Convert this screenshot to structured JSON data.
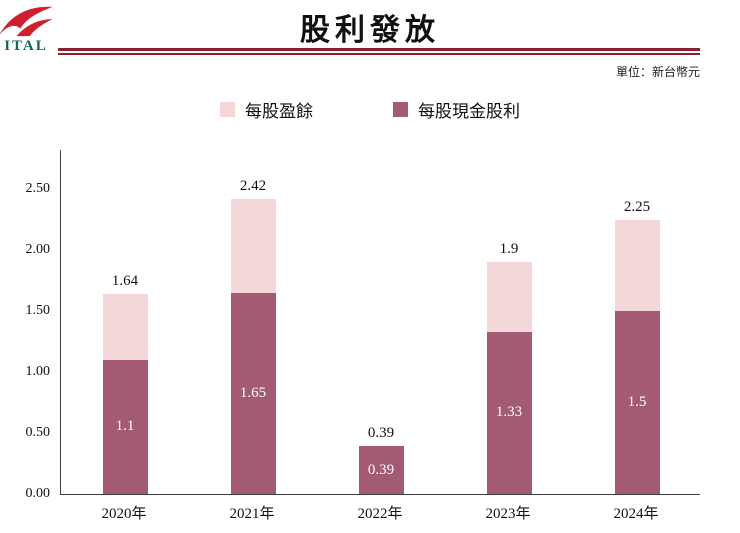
{
  "header": {
    "logo_text": "ITAL",
    "title": "股利發放",
    "unit_label": "單位：新台幣元"
  },
  "legend": [
    {
      "label": "每股盈餘",
      "color": "#f3d7d9"
    },
    {
      "label": "每股現金股利",
      "color": "#a25b72"
    }
  ],
  "colors": {
    "title_rule": "#8a2031",
    "logo_red": "#cf1f2f",
    "logo_text_green": "#17694f",
    "bar_light_pink": "#f3d7d9",
    "bar_dark_mauve": "#a25b72"
  },
  "chart_data": {
    "type": "bar",
    "stacked": true,
    "title": "股利發放",
    "unit": "新台幣元",
    "categories": [
      "2020年",
      "2021年",
      "2022年",
      "2023年",
      "2024年"
    ],
    "series": [
      {
        "name": "每股現金股利",
        "color": "#a25b72",
        "values": [
          1.1,
          1.65,
          0.39,
          1.33,
          1.5
        ],
        "labels": [
          "1.1",
          "1.65",
          "0.39",
          "1.33",
          "1.5"
        ]
      },
      {
        "name": "每股盈餘",
        "color": "#f3d7d9",
        "values": [
          1.64,
          2.42,
          0.39,
          1.9,
          2.25
        ],
        "labels": [
          "1.64",
          "2.42",
          "0.39",
          "1.9",
          "2.25"
        ]
      }
    ],
    "series_note_total": "每股盈餘 values are total bar heights; dark segment is 每股現金股利",
    "ylim": [
      0,
      2.5
    ],
    "yticks": [
      0,
      0.5,
      1.0,
      1.5,
      2.0,
      2.5
    ],
    "ytick_labels": [
      "0.00",
      "0.50",
      "1.00",
      "1.50",
      "2.00",
      "2.50"
    ],
    "grid": false,
    "legend_position": "top-center"
  }
}
